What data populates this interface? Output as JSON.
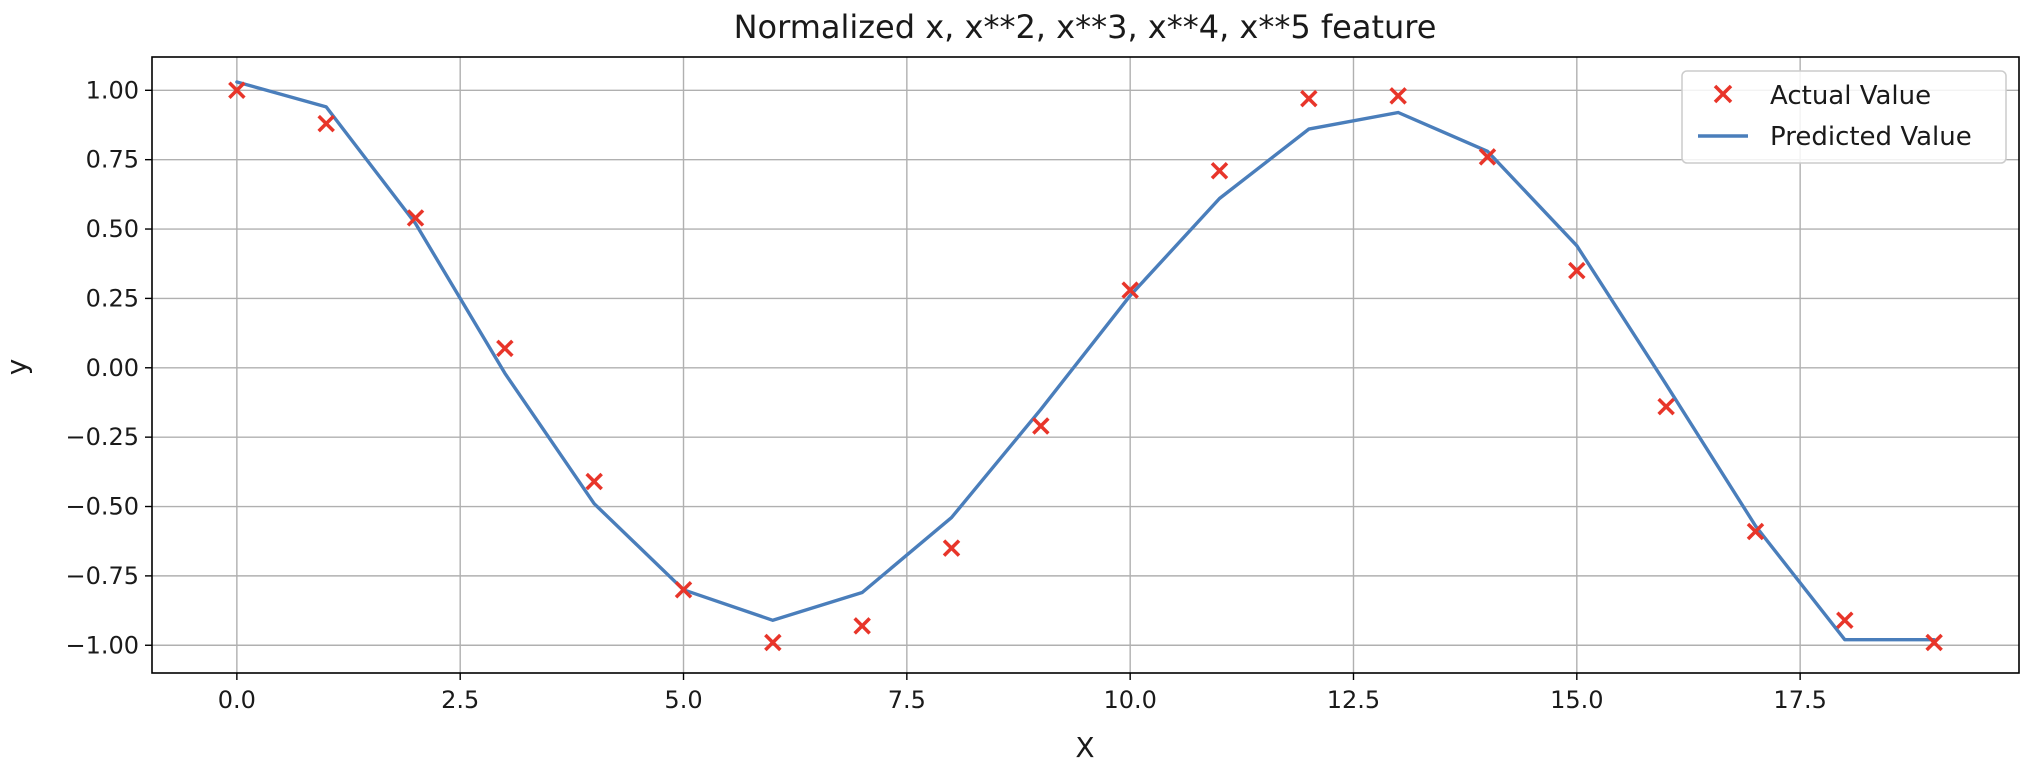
{
  "chart_data": {
    "type": "line",
    "title": "Normalized x, x**2, x**3, x**4, x**5 feature",
    "xlabel": "X",
    "ylabel": "y",
    "xlim": [
      -0.95,
      19.95
    ],
    "ylim": [
      -1.1,
      1.12
    ],
    "grid": true,
    "legend_position": "top-right",
    "xticks": [
      0.0,
      2.5,
      5.0,
      7.5,
      10.0,
      12.5,
      15.0,
      17.5
    ],
    "xtick_labels": [
      "0.0",
      "2.5",
      "5.0",
      "7.5",
      "10.0",
      "12.5",
      "15.0",
      "17.5"
    ],
    "yticks": [
      1.0,
      0.75,
      0.5,
      0.25,
      0.0,
      -0.25,
      -0.5,
      -0.75,
      -1.0
    ],
    "ytick_labels": [
      "1.00",
      "0.75",
      "0.50",
      "0.25",
      "0.00",
      "−0.25",
      "−0.50",
      "−0.75",
      "−1.00"
    ],
    "x": [
      0,
      1,
      2,
      3,
      4,
      5,
      6,
      7,
      8,
      9,
      10,
      11,
      12,
      13,
      14,
      15,
      16,
      17,
      18,
      19
    ],
    "series": [
      {
        "name": "Actual Value",
        "kind": "scatter",
        "marker": "x",
        "color": "#e8352a",
        "values": [
          1.0,
          0.88,
          0.54,
          0.07,
          -0.41,
          -0.8,
          -0.99,
          -0.93,
          -0.65,
          -0.21,
          0.28,
          0.71,
          0.97,
          0.98,
          0.76,
          0.35,
          -0.14,
          -0.59,
          -0.91,
          -0.99
        ]
      },
      {
        "name": "Predicted Value",
        "kind": "line",
        "color": "#4a7ebb",
        "values": [
          1.03,
          0.94,
          0.52,
          -0.02,
          -0.49,
          -0.8,
          -0.91,
          -0.81,
          -0.54,
          -0.15,
          0.26,
          0.61,
          0.86,
          0.92,
          0.78,
          0.44,
          -0.06,
          -0.57,
          -0.98,
          -0.98
        ]
      }
    ]
  }
}
